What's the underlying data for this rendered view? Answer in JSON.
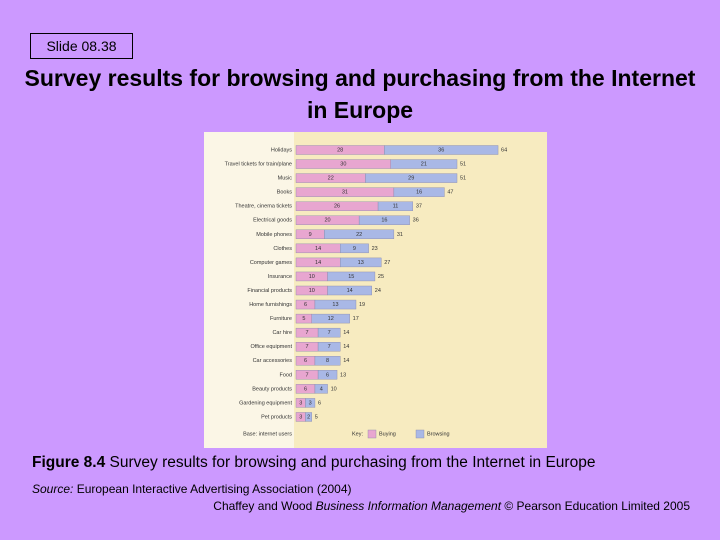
{
  "slide_number": "Slide 08.38",
  "title": "Survey results for browsing and purchasing from the Internet in Europe",
  "caption": {
    "label": "Figure 8.4",
    "text": " Survey results for browsing and purchasing from the Internet in Europe"
  },
  "source": {
    "label": "Source:",
    "text": " European Interactive Advertising Association (2004)"
  },
  "credit": {
    "authors": "Chaffey and Wood ",
    "book": "Business Information Management",
    "rest": " © Pearson Education Limited 2005"
  },
  "chart_data": {
    "type": "stacked-bar-horizontal",
    "categories": [
      "Holidays",
      "Travel tickets for train/plane",
      "Music",
      "Books",
      "Theatre, cinema tickets",
      "Electrical goods",
      "Mobile phones",
      "Clothes",
      "Computer games",
      "Insurance",
      "Financial products",
      "Home furnishings",
      "Furniture",
      "Car hire",
      "Office equipment",
      "Car accessories",
      "Food",
      "Beauty products",
      "Gardening equipment",
      "Pet products"
    ],
    "series": [
      {
        "name": "Buying",
        "color": "#e8a6d0",
        "values": [
          28,
          30,
          22,
          31,
          26,
          20,
          9,
          14,
          14,
          10,
          10,
          6,
          5,
          7,
          7,
          6,
          7,
          6,
          3,
          3
        ]
      },
      {
        "name": "Browsing",
        "color": "#a9b8e6",
        "values": [
          36,
          21,
          29,
          16,
          11,
          16,
          22,
          9,
          13,
          15,
          14,
          13,
          12,
          7,
          7,
          8,
          6,
          4,
          3,
          2
        ]
      }
    ],
    "totals": [
      64,
      51,
      51,
      47,
      37,
      36,
      31,
      23,
      27,
      25,
      24,
      19,
      17,
      14,
      14,
      14,
      13,
      10,
      6,
      5
    ],
    "xlim": [
      0,
      70
    ],
    "base_note": "Base: internet users",
    "legend_title": "Key:"
  }
}
